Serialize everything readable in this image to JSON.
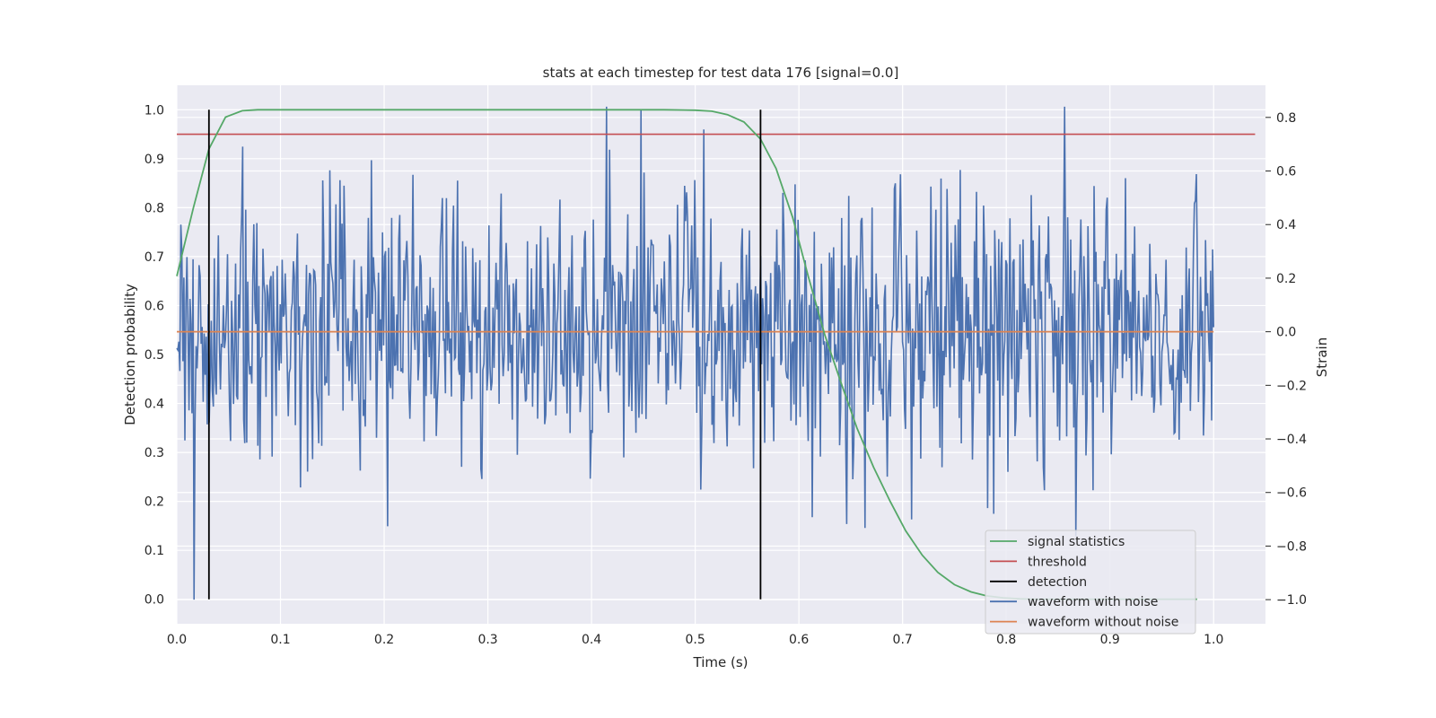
{
  "chart_data": {
    "type": "line",
    "title": "stats at each timestep for test data 176 [signal=0.0]",
    "xlabel": "Time (s)",
    "ylabel_left": "Detection probability",
    "ylabel_right": "Strain",
    "xlim": [
      0.0,
      1.05
    ],
    "ylim_left": [
      -0.05,
      1.05
    ],
    "ylim_right": [
      -1.09,
      0.92
    ],
    "xticks": [
      "0.0",
      "0.1",
      "0.2",
      "0.3",
      "0.4",
      "0.5",
      "0.6",
      "0.7",
      "0.8",
      "0.9",
      "1.0"
    ],
    "yticks_left": [
      "0.0",
      "0.1",
      "0.2",
      "0.3",
      "0.4",
      "0.5",
      "0.6",
      "0.7",
      "0.8",
      "0.9",
      "1.0"
    ],
    "yticks_right": [
      "−1.0",
      "−0.8",
      "−0.6",
      "−0.4",
      "−0.2",
      "0.0",
      "0.2",
      "0.4",
      "0.6",
      "0.8"
    ],
    "grid": true,
    "legend_position": "lower-right",
    "series": [
      {
        "name": "signal statistics",
        "axis": "left",
        "color": "#55a868",
        "x": [
          0.0,
          0.016,
          0.031,
          0.047,
          0.063,
          0.078,
          0.094,
          0.2,
          0.3,
          0.4,
          0.47,
          0.5,
          0.516,
          0.531,
          0.547,
          0.563,
          0.578,
          0.594,
          0.609,
          0.625,
          0.641,
          0.656,
          0.672,
          0.688,
          0.703,
          0.719,
          0.734,
          0.75,
          0.766,
          0.781,
          0.797,
          0.813,
          0.828,
          0.844,
          0.859,
          0.875,
          0.891,
          0.906,
          0.922,
          0.938,
          0.953,
          0.969,
          0.984
        ],
        "y": [
          0.66,
          0.8,
          0.92,
          0.985,
          0.998,
          1.0,
          1.0,
          1.0,
          1.0,
          1.0,
          1.0,
          0.999,
          0.997,
          0.99,
          0.975,
          0.94,
          0.88,
          0.78,
          0.66,
          0.54,
          0.44,
          0.35,
          0.27,
          0.2,
          0.14,
          0.09,
          0.055,
          0.03,
          0.015,
          0.007,
          0.003,
          0.001,
          0.0,
          0.0,
          0.0,
          0.0,
          0.0,
          0.0,
          0.0,
          0.0,
          0.0,
          0.0,
          0.0
        ]
      },
      {
        "name": "threshold",
        "axis": "left",
        "color": "#c44e52",
        "x": [
          0.0,
          1.04
        ],
        "y": [
          0.95,
          0.95
        ]
      },
      {
        "name": "detection",
        "axis": "left",
        "color": "#000000",
        "x": [
          0.031,
          0.563
        ],
        "y_range": [
          0.0,
          1.0
        ]
      },
      {
        "name": "waveform with noise",
        "axis": "right",
        "color": "#4c72b0",
        "x_range": [
          0.0,
          1.0
        ],
        "points": 1024,
        "amplitude_std": 0.27,
        "y_min": -1.0,
        "y_max": 0.84
      },
      {
        "name": "waveform without noise",
        "axis": "right",
        "color": "#dd8452",
        "x": [
          0.0,
          1.0
        ],
        "y": [
          0.0,
          0.0
        ]
      }
    ]
  }
}
